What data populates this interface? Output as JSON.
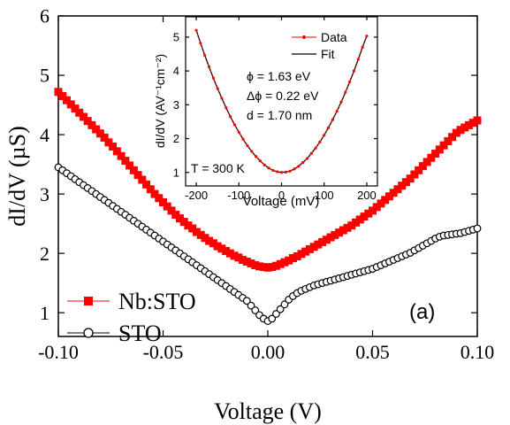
{
  "chart_data": [
    {
      "type": "scatter",
      "panel_label": "(a)",
      "xlabel": "Voltage (V)",
      "ylabel": "dI/dV (µS)",
      "xlim": [
        -0.1,
        0.1
      ],
      "ylim": [
        0.6,
        6.0
      ],
      "xticks": [
        -0.1,
        -0.05,
        0.0,
        0.05,
        0.1
      ],
      "xtick_labels": [
        "-0.10",
        "-0.05",
        "0.00",
        "0.05",
        "0.10"
      ],
      "yticks": [
        1,
        2,
        3,
        4,
        5,
        6
      ],
      "ytick_labels": [
        "1",
        "2",
        "3",
        "4",
        "5",
        "6"
      ],
      "legend_position": "bottom-left",
      "series": [
        {
          "name": "Nb:STO",
          "marker": "filled-square",
          "color": "#ff0000",
          "x": [
            -0.1,
            -0.098,
            -0.096,
            -0.094,
            -0.092,
            -0.09,
            -0.088,
            -0.086,
            -0.084,
            -0.082,
            -0.08,
            -0.078,
            -0.076,
            -0.074,
            -0.072,
            -0.07,
            -0.068,
            -0.066,
            -0.064,
            -0.062,
            -0.06,
            -0.058,
            -0.056,
            -0.054,
            -0.052,
            -0.05,
            -0.048,
            -0.046,
            -0.044,
            -0.042,
            -0.04,
            -0.038,
            -0.036,
            -0.034,
            -0.032,
            -0.03,
            -0.028,
            -0.026,
            -0.024,
            -0.022,
            -0.02,
            -0.018,
            -0.016,
            -0.014,
            -0.012,
            -0.01,
            -0.008,
            -0.006,
            -0.004,
            -0.002,
            0.0,
            0.002,
            0.004,
            0.006,
            0.008,
            0.01,
            0.012,
            0.014,
            0.016,
            0.018,
            0.02,
            0.022,
            0.024,
            0.026,
            0.028,
            0.03,
            0.032,
            0.034,
            0.036,
            0.038,
            0.04,
            0.042,
            0.044,
            0.046,
            0.048,
            0.05,
            0.052,
            0.054,
            0.056,
            0.058,
            0.06,
            0.062,
            0.064,
            0.066,
            0.068,
            0.07,
            0.072,
            0.074,
            0.076,
            0.078,
            0.08,
            0.082,
            0.084,
            0.086,
            0.088,
            0.09,
            0.092,
            0.094,
            0.096,
            0.098,
            0.1
          ],
          "y": [
            4.72,
            4.65,
            4.58,
            4.51,
            4.44,
            4.37,
            4.3,
            4.23,
            4.16,
            4.09,
            4.02,
            3.95,
            3.87,
            3.8,
            3.72,
            3.64,
            3.56,
            3.48,
            3.4,
            3.32,
            3.24,
            3.16,
            3.08,
            3.0,
            2.93,
            2.86,
            2.79,
            2.72,
            2.65,
            2.59,
            2.53,
            2.47,
            2.42,
            2.36,
            2.31,
            2.26,
            2.21,
            2.17,
            2.12,
            2.08,
            2.04,
            2.0,
            1.96,
            1.93,
            1.89,
            1.86,
            1.83,
            1.8,
            1.78,
            1.77,
            1.76,
            1.77,
            1.79,
            1.82,
            1.85,
            1.88,
            1.92,
            1.95,
            1.99,
            2.03,
            2.07,
            2.11,
            2.15,
            2.19,
            2.23,
            2.27,
            2.31,
            2.35,
            2.39,
            2.43,
            2.47,
            2.52,
            2.57,
            2.62,
            2.67,
            2.72,
            2.78,
            2.84,
            2.9,
            2.96,
            3.02,
            3.08,
            3.14,
            3.2,
            3.26,
            3.33,
            3.4,
            3.47,
            3.54,
            3.61,
            3.68,
            3.75,
            3.82,
            3.89,
            3.96,
            4.03,
            4.08,
            4.12,
            4.16,
            4.2,
            4.24
          ]
        },
        {
          "name": "STO",
          "marker": "open-circle",
          "color": "#000000",
          "x": [
            -0.1,
            -0.098,
            -0.096,
            -0.094,
            -0.092,
            -0.09,
            -0.088,
            -0.086,
            -0.084,
            -0.082,
            -0.08,
            -0.078,
            -0.076,
            -0.074,
            -0.072,
            -0.07,
            -0.068,
            -0.066,
            -0.064,
            -0.062,
            -0.06,
            -0.058,
            -0.056,
            -0.054,
            -0.052,
            -0.05,
            -0.048,
            -0.046,
            -0.044,
            -0.042,
            -0.04,
            -0.038,
            -0.036,
            -0.034,
            -0.032,
            -0.03,
            -0.028,
            -0.026,
            -0.024,
            -0.022,
            -0.02,
            -0.018,
            -0.016,
            -0.014,
            -0.012,
            -0.01,
            -0.008,
            -0.006,
            -0.004,
            -0.002,
            0.0,
            0.002,
            0.004,
            0.006,
            0.008,
            0.01,
            0.012,
            0.014,
            0.016,
            0.018,
            0.02,
            0.022,
            0.024,
            0.026,
            0.028,
            0.03,
            0.032,
            0.034,
            0.036,
            0.038,
            0.04,
            0.042,
            0.044,
            0.046,
            0.048,
            0.05,
            0.052,
            0.054,
            0.056,
            0.058,
            0.06,
            0.062,
            0.064,
            0.066,
            0.068,
            0.07,
            0.072,
            0.074,
            0.076,
            0.078,
            0.08,
            0.082,
            0.084,
            0.086,
            0.088,
            0.09,
            0.092,
            0.094,
            0.096,
            0.098,
            0.1
          ],
          "y": [
            3.45,
            3.4,
            3.35,
            3.3,
            3.25,
            3.2,
            3.15,
            3.1,
            3.05,
            3.0,
            2.95,
            2.9,
            2.85,
            2.8,
            2.75,
            2.7,
            2.65,
            2.6,
            2.55,
            2.5,
            2.45,
            2.4,
            2.35,
            2.3,
            2.25,
            2.2,
            2.15,
            2.1,
            2.05,
            2.0,
            1.95,
            1.9,
            1.85,
            1.8,
            1.75,
            1.7,
            1.65,
            1.6,
            1.55,
            1.5,
            1.45,
            1.4,
            1.35,
            1.3,
            1.25,
            1.2,
            1.12,
            1.04,
            0.96,
            0.9,
            0.86,
            0.9,
            0.98,
            1.06,
            1.14,
            1.22,
            1.28,
            1.33,
            1.37,
            1.4,
            1.43,
            1.46,
            1.48,
            1.5,
            1.52,
            1.54,
            1.56,
            1.58,
            1.6,
            1.62,
            1.64,
            1.66,
            1.68,
            1.7,
            1.72,
            1.74,
            1.77,
            1.8,
            1.83,
            1.86,
            1.89,
            1.92,
            1.95,
            1.98,
            2.01,
            2.05,
            2.09,
            2.13,
            2.17,
            2.21,
            2.25,
            2.28,
            2.3,
            2.31,
            2.32,
            2.33,
            2.34,
            2.36,
            2.38,
            2.4,
            2.42
          ]
        }
      ]
    },
    {
      "type": "scatter",
      "xlabel": "Voltage (mV)",
      "ylabel": "dI/dV (AV⁻¹cm⁻²)",
      "xlim": [
        -225,
        225
      ],
      "ylim": [
        0.6,
        5.6
      ],
      "xticks": [
        -200,
        -100,
        0,
        100,
        200
      ],
      "xtick_labels": [
        "-200",
        "-100",
        "0",
        "100",
        "200"
      ],
      "yticks": [
        1,
        2,
        3,
        4,
        5
      ],
      "ytick_labels": [
        "1",
        "2",
        "3",
        "4",
        "5"
      ],
      "legend_position": "top-right",
      "annotations": [
        "ϕ   = 1.63 eV",
        "Δϕ = 0.22 eV",
        "d   = 1.70 nm",
        "T = 300 K"
      ],
      "series": [
        {
          "name": "Data",
          "marker": "dot-line",
          "color": "#ff0000",
          "x": [
            -200,
            -190,
            -180,
            -170,
            -160,
            -150,
            -140,
            -130,
            -120,
            -110,
            -100,
            -90,
            -80,
            -70,
            -60,
            -50,
            -40,
            -30,
            -20,
            -10,
            0,
            10,
            20,
            30,
            40,
            50,
            60,
            70,
            80,
            90,
            100,
            110,
            120,
            130,
            140,
            150,
            160,
            170,
            180,
            190,
            200
          ],
          "y": [
            5.2,
            4.82,
            4.46,
            4.12,
            3.79,
            3.48,
            3.19,
            2.91,
            2.65,
            2.41,
            2.19,
            1.98,
            1.79,
            1.62,
            1.47,
            1.34,
            1.22,
            1.13,
            1.06,
            1.02,
            1.0,
            1.01,
            1.04,
            1.1,
            1.18,
            1.29,
            1.41,
            1.56,
            1.72,
            1.9,
            2.1,
            2.32,
            2.56,
            2.81,
            3.08,
            3.37,
            3.68,
            4.0,
            4.34,
            4.7,
            5.03
          ]
        },
        {
          "name": "Fit",
          "marker": "line",
          "color": "#000000",
          "x": [
            -200,
            -190,
            -180,
            -170,
            -160,
            -150,
            -140,
            -130,
            -120,
            -110,
            -100,
            -90,
            -80,
            -70,
            -60,
            -50,
            -40,
            -30,
            -20,
            -10,
            0,
            10,
            20,
            30,
            40,
            50,
            60,
            70,
            80,
            90,
            100,
            110,
            120,
            130,
            140,
            150,
            160,
            170,
            180,
            190,
            200
          ],
          "y": [
            5.2,
            4.82,
            4.46,
            4.12,
            3.79,
            3.48,
            3.19,
            2.91,
            2.65,
            2.41,
            2.19,
            1.98,
            1.79,
            1.62,
            1.47,
            1.34,
            1.22,
            1.13,
            1.06,
            1.02,
            1.0,
            1.01,
            1.04,
            1.1,
            1.18,
            1.29,
            1.41,
            1.56,
            1.72,
            1.9,
            2.1,
            2.32,
            2.56,
            2.81,
            3.08,
            3.37,
            3.68,
            4.0,
            4.34,
            4.7,
            5.03
          ]
        }
      ]
    }
  ]
}
